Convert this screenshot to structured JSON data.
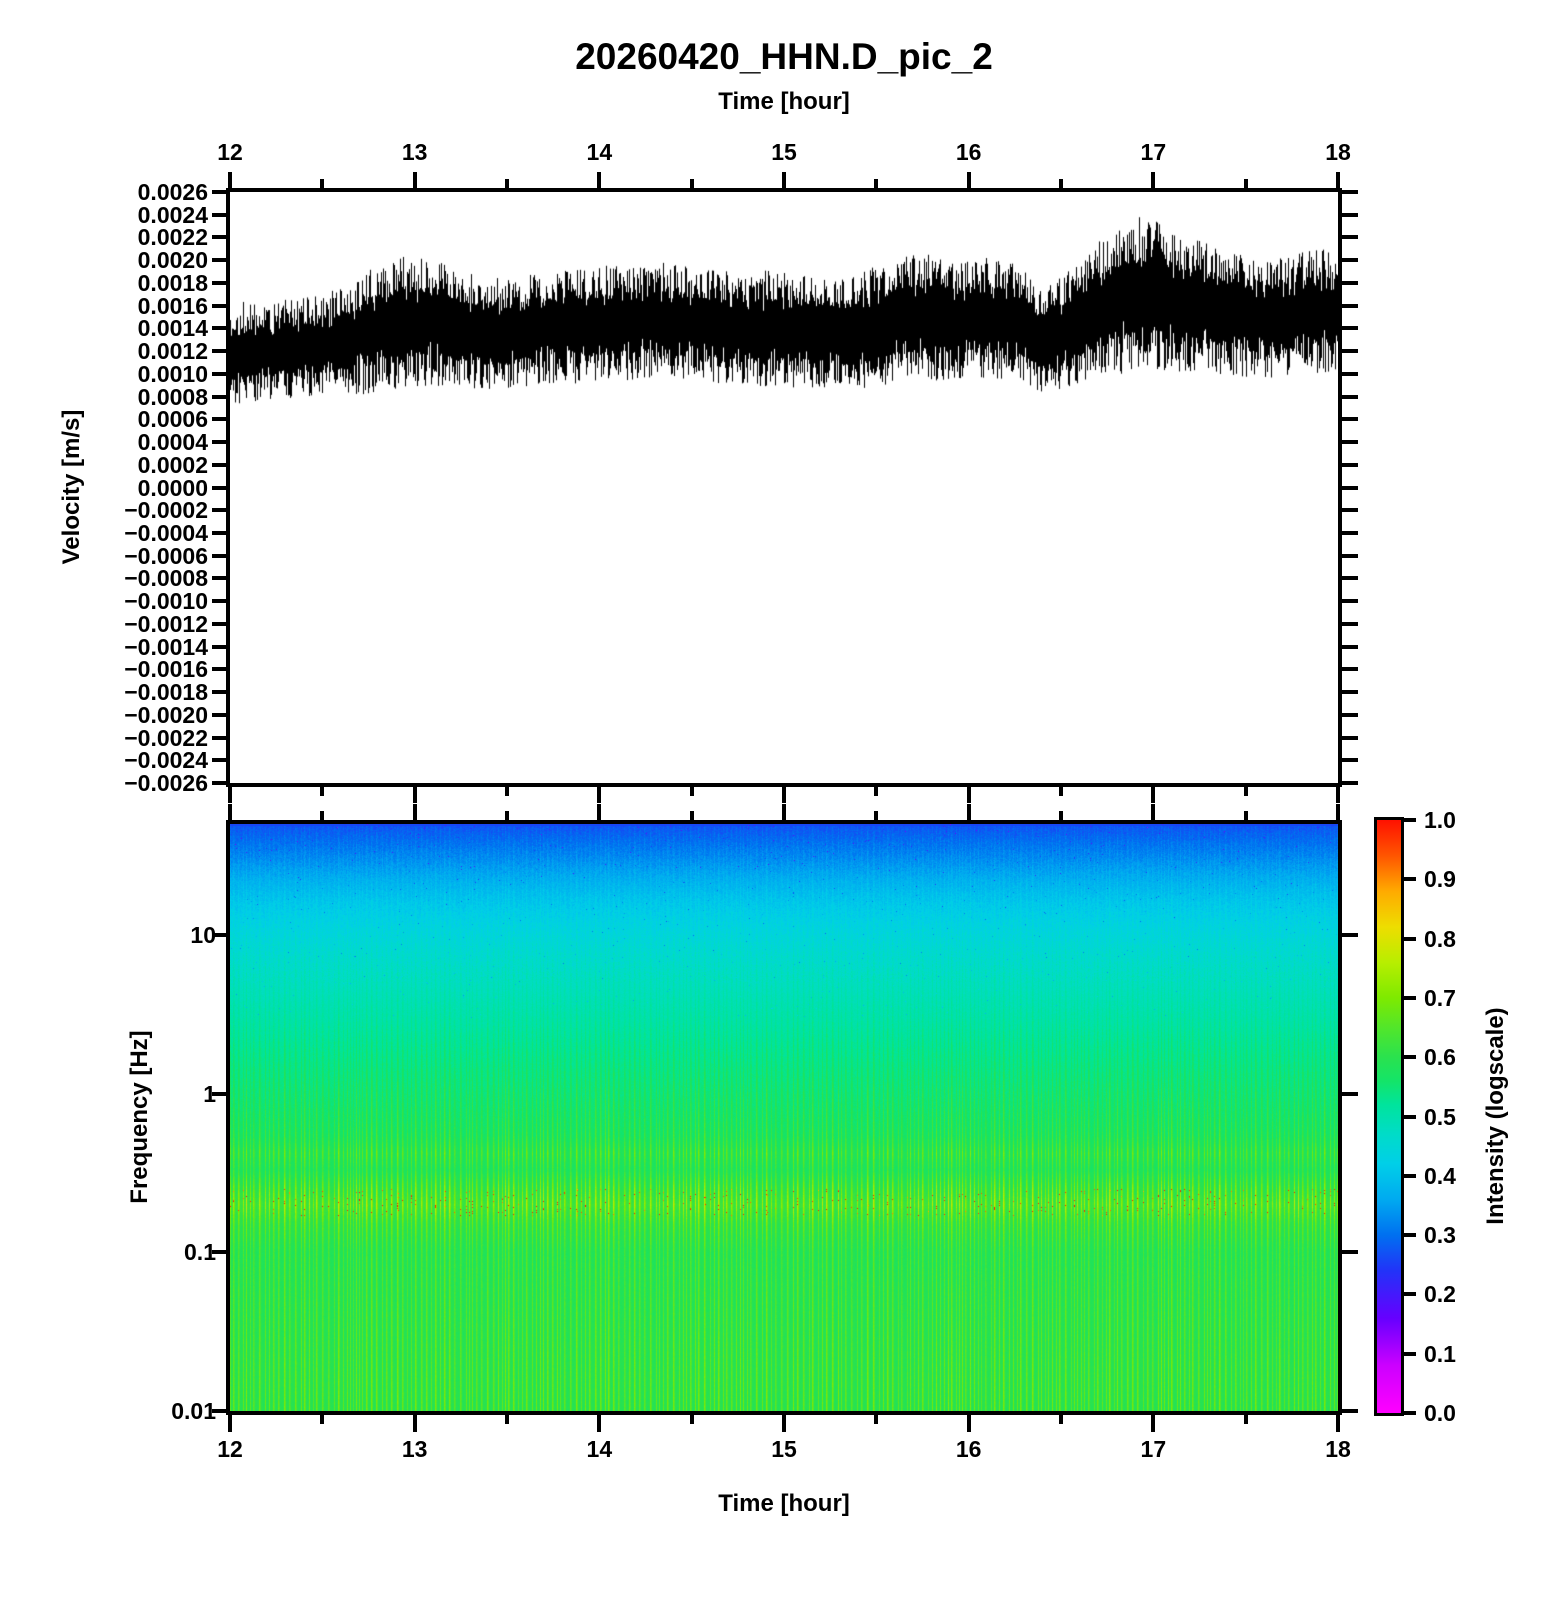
{
  "figure": {
    "title": "20260420_HHN.D_pic_2",
    "background": "#ffffff",
    "axis_color": "#000000"
  },
  "chart_data": [
    {
      "type": "line",
      "name": "seismic-waveform",
      "title": "20260420_HHN.D_pic_2",
      "xlabel": "Time [hour]",
      "ylabel": "Velocity [m/s]",
      "xlim": [
        12,
        18
      ],
      "ylim": [
        -0.0026,
        0.0026
      ],
      "line_color": "#000000",
      "xticks": [
        12,
        13,
        14,
        15,
        16,
        17,
        18
      ],
      "xtick_labels": [
        "12",
        "13",
        "14",
        "15",
        "16",
        "17",
        "18"
      ],
      "xticks_minor": [
        12.5,
        13.5,
        14.5,
        15.5,
        16.5,
        17.5
      ],
      "ytick_step": 0.0002,
      "ytick_labels": [
        "0.0026",
        "0.0024",
        "0.0022",
        "0.0020",
        "0.0018",
        "0.0016",
        "0.0014",
        "0.0012",
        "0.0010",
        "0.0008",
        "0.0006",
        "0.0004",
        "0.0002",
        "0.0000",
        "−0.0002",
        "−0.0004",
        "−0.0006",
        "−0.0008",
        "−0.0010",
        "−0.0012",
        "−0.0014",
        "−0.0016",
        "−0.0018",
        "−0.0020",
        "−0.0022",
        "−0.0024",
        "−0.0026"
      ],
      "envelope": {
        "comment": "noise band envelope read from plot: center line, dense-core half width, max spike half width (m/s)",
        "hours": [
          12.0,
          12.15,
          12.3,
          12.5,
          12.65,
          12.8,
          12.95,
          13.1,
          13.25,
          13.4,
          13.55,
          13.7,
          13.85,
          14.0,
          14.15,
          14.3,
          14.45,
          14.6,
          14.75,
          14.9,
          15.05,
          15.2,
          15.35,
          15.5,
          15.65,
          15.8,
          15.95,
          16.1,
          16.25,
          16.4,
          16.5,
          16.65,
          16.8,
          16.95,
          17.1,
          17.25,
          17.4,
          17.55,
          17.7,
          17.85,
          18.0
        ],
        "center": [
          0.00118,
          0.00119,
          0.00122,
          0.00125,
          0.0013,
          0.0014,
          0.00146,
          0.00145,
          0.00139,
          0.00135,
          0.00137,
          0.0014,
          0.00141,
          0.00143,
          0.00146,
          0.00148,
          0.00145,
          0.00142,
          0.0014,
          0.00139,
          0.00138,
          0.00136,
          0.00135,
          0.00142,
          0.00149,
          0.0015,
          0.00147,
          0.00149,
          0.00146,
          0.00129,
          0.00135,
          0.00152,
          0.00163,
          0.0017,
          0.00164,
          0.0016,
          0.00154,
          0.00148,
          0.0015,
          0.00154,
          0.00157
        ],
        "core_halfwidth": [
          0.0002,
          0.0002,
          0.0002,
          0.00021,
          0.00023,
          0.00026,
          0.00027,
          0.00026,
          0.00024,
          0.00024,
          0.00024,
          0.00024,
          0.00024,
          0.00024,
          0.00024,
          0.00025,
          0.00024,
          0.00024,
          0.00024,
          0.00024,
          0.00024,
          0.00024,
          0.00024,
          0.00026,
          0.00027,
          0.00027,
          0.00026,
          0.00027,
          0.00026,
          0.00022,
          0.00024,
          0.00028,
          0.00028,
          0.00029,
          0.00028,
          0.00027,
          0.00026,
          0.00025,
          0.00026,
          0.00026,
          0.00026
        ],
        "spike_halfwidth": [
          0.00046,
          0.00044,
          0.00044,
          0.00046,
          0.0005,
          0.00056,
          0.00058,
          0.00056,
          0.00052,
          0.0005,
          0.0005,
          0.0005,
          0.0005,
          0.00052,
          0.00052,
          0.00052,
          0.0005,
          0.0005,
          0.0005,
          0.00052,
          0.0005,
          0.00048,
          0.00048,
          0.00054,
          0.00056,
          0.00056,
          0.00054,
          0.00054,
          0.00052,
          0.00046,
          0.0005,
          0.00058,
          0.00064,
          0.00071,
          0.00062,
          0.00058,
          0.00055,
          0.00052,
          0.00053,
          0.00055,
          0.00056
        ]
      }
    },
    {
      "type": "heatmap",
      "name": "spectrogram",
      "xlabel": "Time [hour]",
      "ylabel": "Frequency [Hz]",
      "colorbar_label": "Intensity (logscale)",
      "xlim": [
        12,
        18
      ],
      "freq_range_hz": [
        0.01,
        50.119
      ],
      "yticks": [
        10,
        1,
        0.1,
        0.01
      ],
      "ytick_labels": [
        "10",
        "1",
        "0.1",
        "0.01"
      ],
      "xticks": [
        12,
        13,
        14,
        15,
        16,
        17,
        18
      ],
      "xtick_labels": [
        "12",
        "13",
        "14",
        "15",
        "16",
        "17",
        "18"
      ],
      "xticks_minor": [
        12.5,
        13.5,
        14.5,
        15.5,
        16.5,
        17.5
      ],
      "colorbar_ticks": [
        1.0,
        0.9,
        0.8,
        0.7,
        0.6,
        0.5,
        0.4,
        0.3,
        0.2,
        0.1,
        0.0
      ],
      "colorbar_tick_labels": [
        "1.0",
        "0.9",
        "0.8",
        "0.7",
        "0.6",
        "0.5",
        "0.4",
        "0.3",
        "0.2",
        "0.1",
        "0.0"
      ],
      "colormap_stops": [
        [
          0.0,
          "#ff00ff"
        ],
        [
          0.08,
          "#cc00ff"
        ],
        [
          0.16,
          "#6600ff"
        ],
        [
          0.24,
          "#2233f8"
        ],
        [
          0.3,
          "#0070f0"
        ],
        [
          0.36,
          "#00aaf0"
        ],
        [
          0.42,
          "#00cfe8"
        ],
        [
          0.47,
          "#00dcc8"
        ],
        [
          0.52,
          "#00e49c"
        ],
        [
          0.56,
          "#14e468"
        ],
        [
          0.6,
          "#2ae24e"
        ],
        [
          0.65,
          "#52e62a"
        ],
        [
          0.7,
          "#7eea00"
        ],
        [
          0.76,
          "#b8ee00"
        ],
        [
          0.82,
          "#eedd00"
        ],
        [
          0.88,
          "#ffaa00"
        ],
        [
          0.94,
          "#ff5500"
        ],
        [
          1.0,
          "#ff1100"
        ]
      ],
      "intensity_profile": [
        [
          50,
          0.272
        ],
        [
          40,
          0.298
        ],
        [
          30,
          0.332
        ],
        [
          22,
          0.372
        ],
        [
          16,
          0.408
        ],
        [
          12,
          0.432
        ],
        [
          8,
          0.458
        ],
        [
          5,
          0.483
        ],
        [
          3,
          0.508
        ],
        [
          2,
          0.528
        ],
        [
          1.4,
          0.543
        ],
        [
          1.0,
          0.555
        ],
        [
          0.75,
          0.565
        ],
        [
          0.55,
          0.576
        ],
        [
          0.42,
          0.6
        ],
        [
          0.33,
          0.586
        ],
        [
          0.26,
          0.615
        ],
        [
          0.2,
          0.645
        ],
        [
          0.15,
          0.615
        ],
        [
          0.1,
          0.596
        ],
        [
          0.06,
          0.6
        ],
        [
          0.03,
          0.605
        ],
        [
          0.015,
          0.61
        ],
        [
          0.01,
          0.61
        ]
      ],
      "stripe_amplitude": [
        [
          50,
          0.012
        ],
        [
          10,
          0.016
        ],
        [
          3,
          0.022
        ],
        [
          1.5,
          0.032
        ],
        [
          1.0,
          0.05
        ],
        [
          0.7,
          0.055
        ],
        [
          0.5,
          0.062
        ],
        [
          0.42,
          0.082
        ],
        [
          0.33,
          0.056
        ],
        [
          0.26,
          0.092
        ],
        [
          0.2,
          0.105
        ],
        [
          0.15,
          0.072
        ],
        [
          0.1,
          0.056
        ],
        [
          0.05,
          0.06
        ],
        [
          0.02,
          0.066
        ],
        [
          0.01,
          0.072
        ]
      ],
      "microseism_bands_hz": [
        [
          0.17,
          0.25
        ],
        [
          0.35,
          0.45
        ]
      ]
    }
  ]
}
